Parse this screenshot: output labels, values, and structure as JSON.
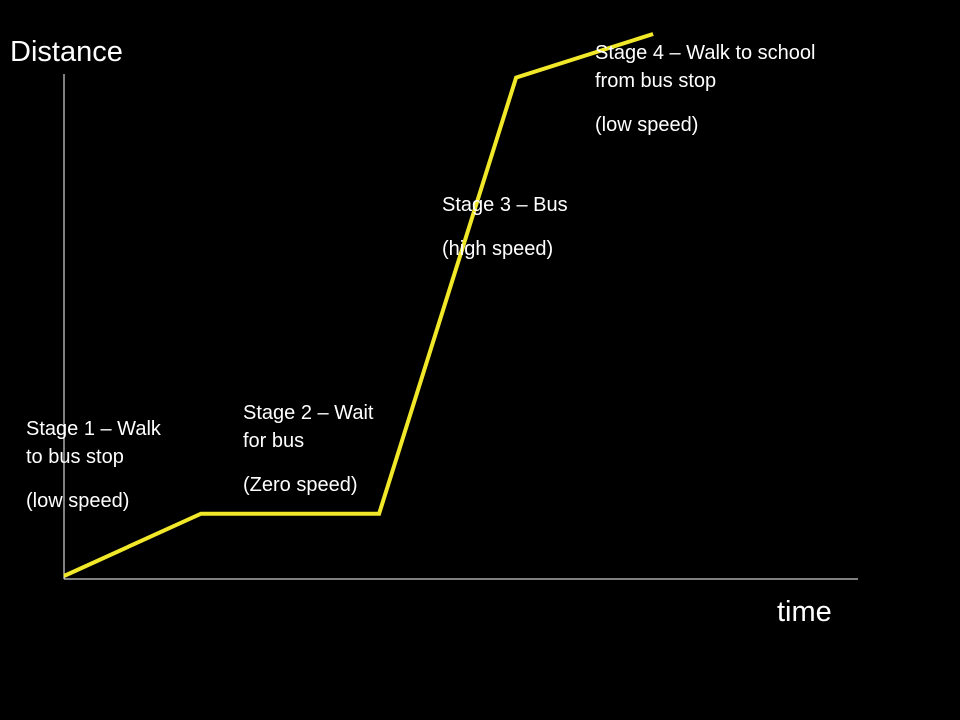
{
  "colors": {
    "background": "#000000",
    "axis": "#ffffff",
    "line": "#f2e82a",
    "text": "#ffffff"
  },
  "axes": {
    "y_label": "Distance",
    "x_label": "time"
  },
  "chart_data": {
    "type": "line",
    "xlabel": "time",
    "ylabel": "Distance",
    "grid": false,
    "series": [
      {
        "points": [
          {
            "x": 0,
            "y": 0
          },
          {
            "x": 1,
            "y": 1
          },
          {
            "x": 2.3,
            "y": 1
          },
          {
            "x": 3.3,
            "y": 8
          },
          {
            "x": 4.3,
            "y": 8.7
          }
        ]
      }
    ],
    "xlim": [
      0,
      5.8
    ],
    "ylim": [
      0,
      8.5
    ]
  },
  "annotations": [
    {
      "id": "stage-1",
      "lines": [
        "Stage 1 – Walk",
        "to bus stop"
      ],
      "note": "(low speed)"
    },
    {
      "id": "stage-2",
      "lines": [
        "Stage 2 – Wait",
        "for bus"
      ],
      "note": "(Zero speed)"
    },
    {
      "id": "stage-3",
      "lines": [
        "Stage 3 – Bus"
      ],
      "note": "(high speed)"
    },
    {
      "id": "stage-4",
      "lines": [
        "Stage 4 – Walk to school",
        "from bus stop"
      ],
      "note": "(low speed)"
    }
  ]
}
